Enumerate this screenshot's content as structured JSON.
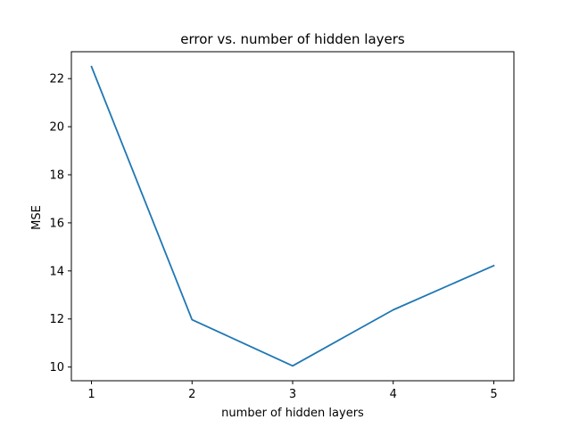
{
  "chart_data": {
    "type": "line",
    "title": "error vs. number of hidden layers",
    "xlabel": "number of hidden layers",
    "ylabel": "MSE",
    "x": [
      1,
      2,
      3,
      4,
      5
    ],
    "series": [
      {
        "values": [
          22.5,
          11.97,
          10.05,
          12.38,
          14.22
        ],
        "color": "#1f77b4"
      }
    ],
    "xlim": [
      0.8,
      5.2
    ],
    "ylim": [
      9.43,
      23.12
    ],
    "xticks": [
      1,
      2,
      3,
      4,
      5
    ],
    "xtick_labels": [
      "1",
      "2",
      "3",
      "4",
      "5"
    ],
    "yticks": [
      10,
      12,
      14,
      16,
      18,
      20,
      22
    ],
    "ytick_labels": [
      "10",
      "12",
      "14",
      "16",
      "18",
      "20",
      "22"
    ],
    "grid": false,
    "legend": "none"
  }
}
